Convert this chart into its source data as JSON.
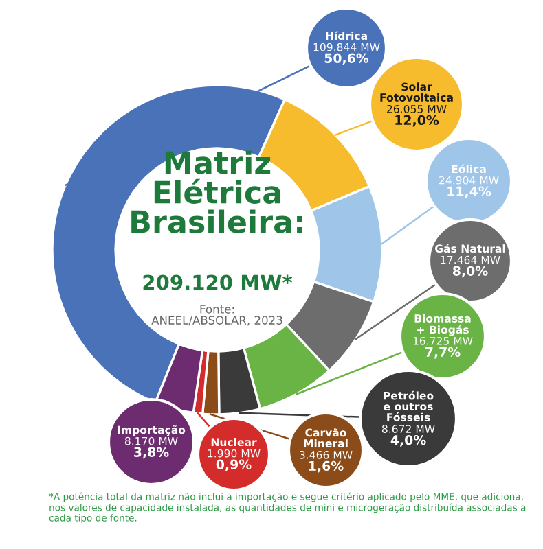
{
  "chart_data": {
    "type": "donut",
    "title": "Matriz\nElétrica\nBrasileira:",
    "subtitle": "209.120 MW*",
    "categories": [
      "Hídrica",
      "Solar\nFotovoltaica",
      "Eólica",
      "Gás Natural",
      "Biomassa\n+ Biogás",
      "Petróleo\ne outros\nFósseis",
      "Carvão\nMineral",
      "Nuclear",
      "Importação"
    ],
    "values": [
      50.6,
      12.0,
      11.4,
      8.0,
      7.7,
      4.0,
      1.6,
      0.9,
      3.8
    ],
    "value_labels": [
      "109.844 MW\n50,6%",
      "26.055 MW\n12,0%",
      "24.904 MW\n11,4%",
      "17.464 MW\n8,0%",
      "16.725 MW\n7,7%",
      "8.672 MW\n4,0%",
      "3.466 MW\n1,6%",
      "1.990 MW\n0,9%",
      "8.170 MW\n3,8%"
    ],
    "colors": [
      "#4a72b8",
      "#f7bc2e",
      "#9fc5e8",
      "#6d6d6d",
      "#6ab446",
      "#3a3a3a",
      "#8b4c1a",
      "#d42b2b",
      "#6e2c70"
    ],
    "annotations": [
      "Fonte:\nANEEL/ABSOLAR, 2023",
      "*A potência total da matriz não inclui a importação e segue critério aplicado pelo MME, que adiciona, nos valores de capacidade instalada, as quantidades de mini e microgeração distribuída associadas a cada tipo de fonte."
    ]
  }
}
